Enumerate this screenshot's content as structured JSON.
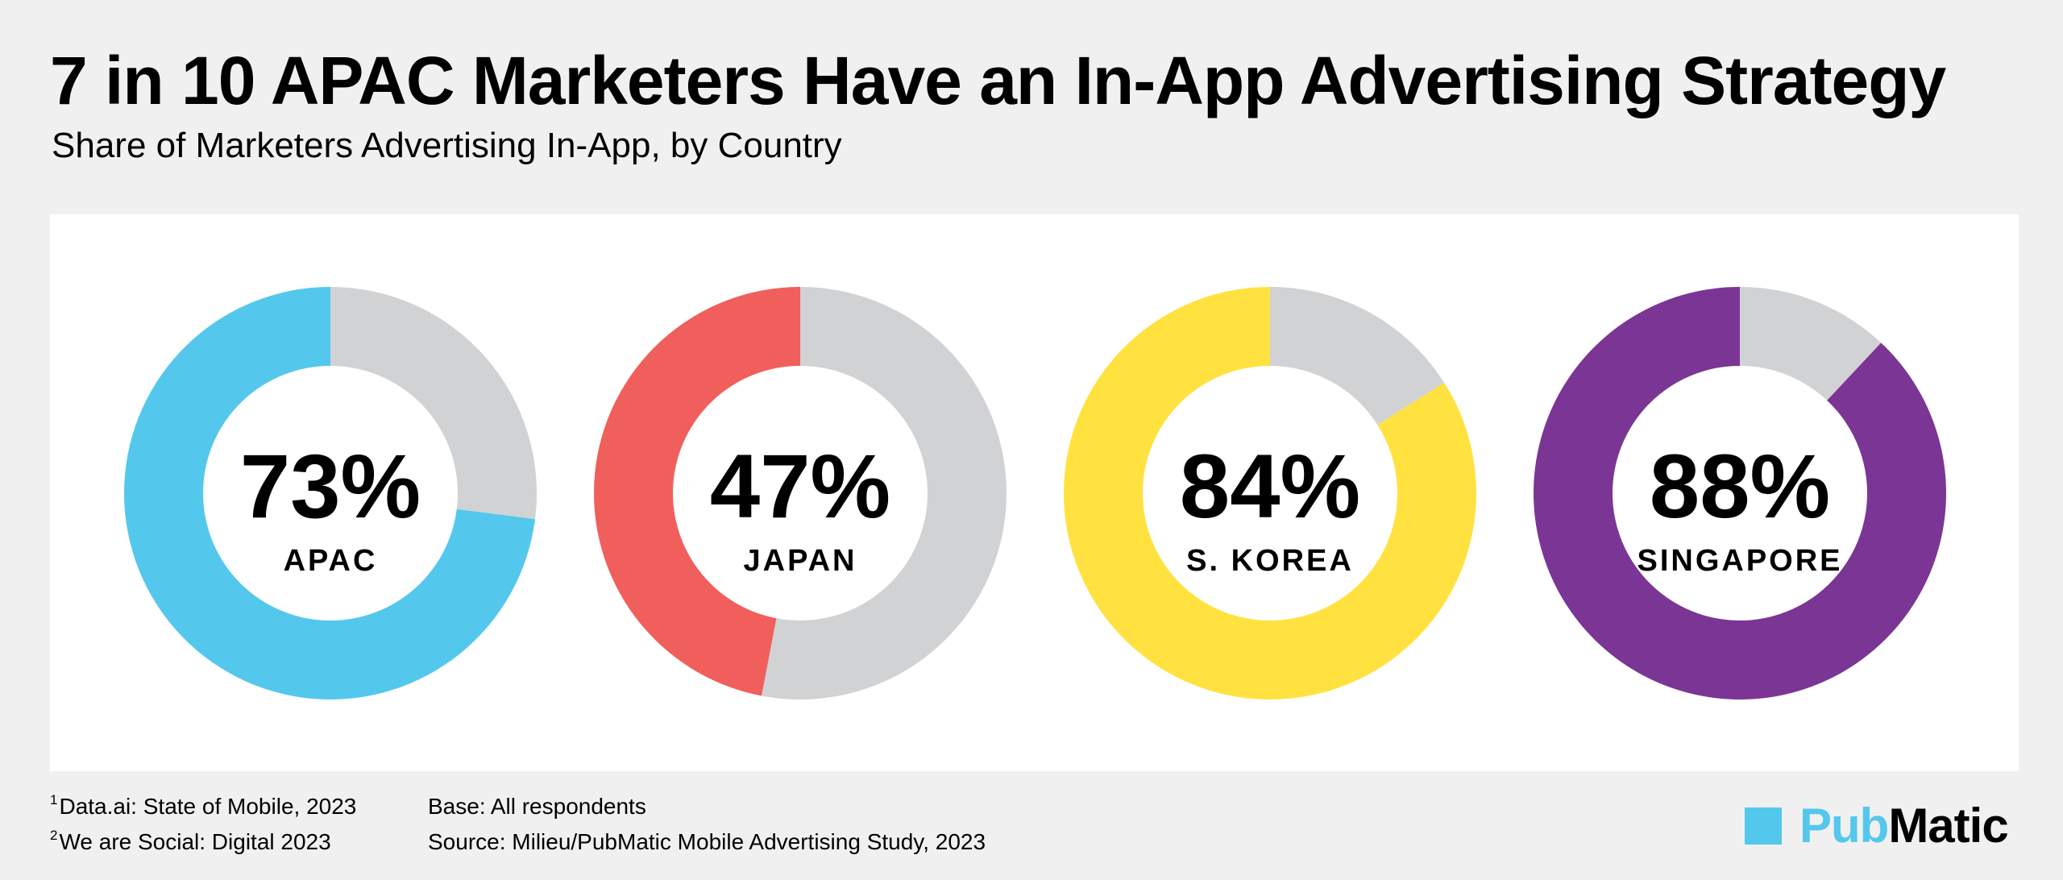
{
  "title": "7 in 10 APAC Marketers Have an In-App Advertising Strategy",
  "subtitle": "Share of Marketers Advertising In-App, by Country",
  "chart_data": {
    "type": "pie",
    "variant": "donut",
    "remainder_color": "#d1d2d4",
    "series": [
      {
        "label": "APAC",
        "value": 73,
        "display": "73%",
        "color": "#54c8ec"
      },
      {
        "label": "JAPAN",
        "value": 47,
        "display": "47%",
        "color": "#f05f5c"
      },
      {
        "label": "S. KOREA",
        "value": 84,
        "display": "84%",
        "color": "#ffe23f"
      },
      {
        "label": "SINGAPORE",
        "value": 88,
        "display": "88%",
        "color": "#7b3594"
      }
    ]
  },
  "footer": {
    "notes": [
      {
        "num": "1",
        "text": "Data.ai: State of Mobile, 2023"
      },
      {
        "num": "2",
        "text": "We are Social: Digital 2023"
      }
    ],
    "base": "Base: All respondents",
    "source": "Source: Milieu/PubMatic Mobile Advertising Study, 2023"
  },
  "logo": {
    "part1": "Pub",
    "part2": "Matic",
    "color": "#54c8ec"
  }
}
